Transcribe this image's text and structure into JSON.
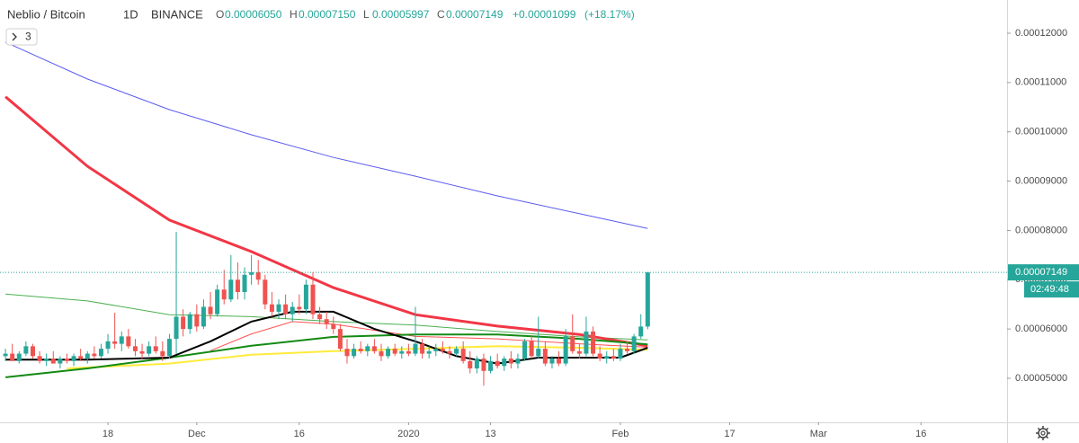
{
  "header": {
    "symbol": "Neblio / Bitcoin",
    "interval": "1D",
    "exchange": "BINANCE",
    "ohlc": [
      {
        "key": "O",
        "value": "0.00006050"
      },
      {
        "key": "H",
        "value": "0.00007150"
      },
      {
        "key": "L",
        "value": "0.00005997"
      },
      {
        "key": "C",
        "value": "0.00007149"
      }
    ],
    "change": "+0.00001099",
    "change_percent": "(+18.17%)",
    "indicators_button": "3"
  },
  "chart_data": {
    "type": "candlestick",
    "up_color": "#26a69a",
    "down_color": "#ef5350",
    "grid": false,
    "x": [
      0,
      1,
      2,
      3,
      4,
      5,
      6,
      7,
      8,
      9,
      10,
      11,
      12,
      13,
      14,
      15,
      16,
      17,
      18,
      19,
      20,
      21,
      22,
      23,
      24,
      25,
      26,
      27,
      28,
      29,
      30,
      31,
      32,
      33,
      34,
      35,
      36,
      37,
      38,
      39,
      40,
      41,
      42,
      43,
      44,
      45,
      46,
      47,
      48,
      49,
      50,
      51,
      52,
      53,
      54,
      55,
      56,
      57,
      58,
      59,
      60,
      61,
      62,
      63,
      64,
      65,
      66,
      67,
      68,
      69,
      70,
      71,
      72,
      73,
      74,
      75,
      76,
      77,
      78,
      79,
      80,
      81,
      82,
      83,
      84,
      85,
      86,
      87,
      88,
      89,
      90,
      91,
      92,
      93,
      94
    ],
    "open": [
      5.45e-05,
      5.5e-05,
      5.35e-05,
      5.5e-05,
      5.65e-05,
      5.45e-05,
      5.35e-05,
      5.4e-05,
      5.3e-05,
      5.4e-05,
      5.35e-05,
      5.45e-05,
      5.4e-05,
      5.5e-05,
      5.45e-05,
      5.6e-05,
      5.75e-05,
      5.7e-05,
      5.85e-05,
      5.65e-05,
      5.55e-05,
      5.5e-05,
      5.65e-05,
      5.55e-05,
      5.45e-05,
      5.8e-05,
      6.25e-05,
      6e-05,
      6.3e-05,
      6.05e-05,
      6.45e-05,
      6.3e-05,
      6.8e-05,
      6.6e-05,
      7e-05,
      6.75e-05,
      7.1e-05,
      7.15e-05,
      7e-05,
      6.5e-05,
      6.35e-05,
      6.5e-05,
      6.3e-05,
      6.45e-05,
      6.4e-05,
      6.9e-05,
      6.3e-05,
      6.2e-05,
      6.1e-05,
      6e-05,
      5.6e-05,
      5.45e-05,
      5.6e-05,
      5.55e-05,
      5.65e-05,
      5.55e-05,
      5.45e-05,
      5.6e-05,
      5.5e-05,
      5.55e-05,
      5.5e-05,
      5.7e-05,
      5.5e-05,
      5.55e-05,
      5.6e-05,
      5.55e-05,
      5.5e-05,
      5.6e-05,
      5.35e-05,
      5.2e-05,
      5.4e-05,
      5.15e-05,
      5.35e-05,
      5.25e-05,
      5.4e-05,
      5.3e-05,
      5.4e-05,
      5.75e-05,
      5.45e-05,
      5.6e-05,
      5.3e-05,
      5.4e-05,
      5.3e-05,
      5.85e-05,
      5.55e-05,
      5.5e-05,
      5.95e-05,
      5.5e-05,
      5.4e-05,
      5.45e-05,
      5.4e-05,
      5.6e-05,
      5.55e-05,
      5.85e-05,
      6.05e-05
    ],
    "high": [
      5.6e-05,
      5.7e-05,
      5.55e-05,
      5.75e-05,
      5.7e-05,
      5.55e-05,
      5.5e-05,
      5.55e-05,
      5.45e-05,
      5.5e-05,
      5.5e-05,
      5.6e-05,
      5.55e-05,
      5.65e-05,
      5.7e-05,
      5.9e-05,
      6.33e-05,
      5.95e-05,
      6e-05,
      5.8e-05,
      5.7e-05,
      5.75e-05,
      5.85e-05,
      5.75e-05,
      5.9e-05,
      7.97e-05,
      6.4e-05,
      6.35e-05,
      6.5e-05,
      6.6e-05,
      6.75e-05,
      6.9e-05,
      7.2e-05,
      7.5e-05,
      7.35e-05,
      7.25e-05,
      7.5e-05,
      7.4e-05,
      7.1e-05,
      6.75e-05,
      6.6e-05,
      6.7e-05,
      6.55e-05,
      6.7e-05,
      7e-05,
      7.15e-05,
      6.45e-05,
      6.35e-05,
      6.25e-05,
      6.1e-05,
      5.8e-05,
      5.7e-05,
      5.75e-05,
      5.7e-05,
      5.8e-05,
      5.7e-05,
      5.65e-05,
      5.7e-05,
      5.65e-05,
      5.7e-05,
      6.45e-05,
      5.8e-05,
      5.65e-05,
      5.7e-05,
      5.75e-05,
      5.65e-05,
      5.65e-05,
      5.75e-05,
      5.55e-05,
      5.45e-05,
      5.5e-05,
      5.45e-05,
      5.5e-05,
      5.45e-05,
      5.55e-05,
      5.5e-05,
      5.8e-05,
      5.85e-05,
      6.25e-05,
      5.75e-05,
      5.45e-05,
      5.55e-05,
      6e-05,
      6.3e-05,
      5.7e-05,
      6.25e-05,
      6.05e-05,
      5.65e-05,
      5.55e-05,
      5.6e-05,
      5.7e-05,
      5.75e-05,
      5.9e-05,
      6.3e-05,
      7.15e-05
    ],
    "low": [
      5.35e-05,
      5.4e-05,
      5.3e-05,
      5.45e-05,
      5.4e-05,
      5.3e-05,
      5.25e-05,
      5.3e-05,
      5.2e-05,
      5.3e-05,
      5.25e-05,
      5.35e-05,
      5.3e-05,
      5.4e-05,
      5.4e-05,
      5.5e-05,
      5.6e-05,
      5.55e-05,
      5.6e-05,
      5.45e-05,
      5.4e-05,
      5.45e-05,
      5.5e-05,
      5.35e-05,
      5.4e-05,
      5.5e-05,
      5.85e-05,
      5.9e-05,
      5.95e-05,
      6e-05,
      6.2e-05,
      6.25e-05,
      6.5e-05,
      6.55e-05,
      6.6e-05,
      6.6e-05,
      6.9e-05,
      6.9e-05,
      6.4e-05,
      6.25e-05,
      6.2e-05,
      6.2e-05,
      6.15e-05,
      6.3e-05,
      6.3e-05,
      6.2e-05,
      6.1e-05,
      6e-05,
      5.9e-05,
      5.55e-05,
      5.3e-05,
      5.4e-05,
      5.5e-05,
      5.45e-05,
      5.5e-05,
      5.35e-05,
      5.4e-05,
      5.45e-05,
      5.4e-05,
      5.45e-05,
      5.45e-05,
      5.4e-05,
      5.4e-05,
      5.45e-05,
      5.5e-05,
      5.4e-05,
      5.45e-05,
      5.3e-05,
      5.1e-05,
      5.1e-05,
      4.85e-05,
      5.1e-05,
      5.2e-05,
      5.15e-05,
      5.2e-05,
      5.2e-05,
      5.35e-05,
      5.4e-05,
      5.4e-05,
      5.25e-05,
      5.2e-05,
      5.25e-05,
      5.25e-05,
      5.5e-05,
      5.4e-05,
      5.45e-05,
      5.45e-05,
      5.35e-05,
      5.3e-05,
      5.35e-05,
      5.35e-05,
      5.5e-05,
      5.5e-05,
      5.8e-05,
      5.997e-05
    ],
    "close": [
      5.5e-05,
      5.35e-05,
      5.5e-05,
      5.65e-05,
      5.45e-05,
      5.35e-05,
      5.4e-05,
      5.3e-05,
      5.4e-05,
      5.35e-05,
      5.45e-05,
      5.4e-05,
      5.5e-05,
      5.45e-05,
      5.6e-05,
      5.75e-05,
      5.7e-05,
      5.85e-05,
      5.65e-05,
      5.55e-05,
      5.5e-05,
      5.65e-05,
      5.55e-05,
      5.45e-05,
      5.8e-05,
      6.25e-05,
      6e-05,
      6.3e-05,
      6.05e-05,
      6.45e-05,
      6.3e-05,
      6.8e-05,
      6.6e-05,
      7e-05,
      6.75e-05,
      7.1e-05,
      7.15e-05,
      7e-05,
      6.5e-05,
      6.35e-05,
      6.5e-05,
      6.3e-05,
      6.45e-05,
      6.4e-05,
      6.9e-05,
      6.3e-05,
      6.2e-05,
      6.1e-05,
      6e-05,
      5.6e-05,
      5.45e-05,
      5.6e-05,
      5.55e-05,
      5.65e-05,
      5.55e-05,
      5.45e-05,
      5.6e-05,
      5.5e-05,
      5.55e-05,
      5.5e-05,
      5.7e-05,
      5.5e-05,
      5.55e-05,
      5.6e-05,
      5.55e-05,
      5.5e-05,
      5.6e-05,
      5.35e-05,
      5.2e-05,
      5.4e-05,
      5.15e-05,
      5.35e-05,
      5.25e-05,
      5.4e-05,
      5.3e-05,
      5.4e-05,
      5.75e-05,
      5.45e-05,
      5.6e-05,
      5.3e-05,
      5.4e-05,
      5.3e-05,
      5.85e-05,
      5.55e-05,
      5.5e-05,
      5.95e-05,
      5.5e-05,
      5.4e-05,
      5.45e-05,
      5.4e-05,
      5.6e-05,
      5.55e-05,
      5.85e-05,
      6.05e-05,
      7.149e-05
    ],
    "last_price_label": "0.00007149",
    "countdown": "02:49:48",
    "lines": [
      {
        "color": "#5b5bf0",
        "width": 1,
        "x": [
          0,
          12,
          24,
          36,
          48,
          60,
          72,
          84,
          94
        ],
        "values": [
          0.0001182,
          0.0001107,
          0.0001045,
          9.94e-05,
          9.48e-05,
          9.1e-05,
          8.7e-05,
          8.34e-05,
          8.04e-05
        ]
      },
      {
        "color": "#4caf50",
        "width": 1,
        "x": [
          0,
          12,
          24,
          36,
          48,
          60,
          72,
          84,
          94
        ],
        "values": [
          6.71e-05,
          6.57e-05,
          6.29e-05,
          6.25e-05,
          6.15e-05,
          6.08e-05,
          5.95e-05,
          5.84e-05,
          5.78e-05
        ]
      },
      {
        "color": "#f23645",
        "width": 3,
        "x": [
          0,
          12,
          24,
          36,
          48,
          60,
          72,
          84,
          94
        ],
        "values": [
          0.0001071,
          9.3e-05,
          8.21e-05,
          7.57e-05,
          6.84e-05,
          6.29e-05,
          6.06e-05,
          5.89e-05,
          5.66e-05
        ]
      },
      {
        "color": "#ff5252",
        "width": 1,
        "x": [
          30,
          36,
          42,
          48,
          60,
          72,
          84,
          94
        ],
        "values": [
          5.56e-05,
          5.9e-05,
          6.15e-05,
          6.1e-05,
          5.85e-05,
          5.8e-05,
          5.7e-05,
          5.63e-05
        ]
      },
      {
        "color": "#ffeb3b",
        "width": 2,
        "x": [
          9,
          24,
          36,
          48,
          60,
          72,
          84,
          94
        ],
        "values": [
          5.2e-05,
          5.3e-05,
          5.48e-05,
          5.55e-05,
          5.6e-05,
          5.65e-05,
          5.62e-05,
          5.58e-05
        ]
      },
      {
        "color": "#138a13",
        "width": 2,
        "x": [
          0,
          12,
          24,
          36,
          48,
          60,
          72,
          84,
          94
        ],
        "values": [
          5.02e-05,
          5.2e-05,
          5.42e-05,
          5.66e-05,
          5.84e-05,
          5.89e-05,
          5.89e-05,
          5.8e-05,
          5.69e-05
        ]
      },
      {
        "color": "#000000",
        "width": 2,
        "x": [
          0,
          12,
          24,
          30,
          36,
          42,
          48,
          54,
          60,
          66,
          72,
          78,
          84,
          90,
          94
        ],
        "values": [
          5.38e-05,
          5.38e-05,
          5.42e-05,
          5.75e-05,
          6.15e-05,
          6.35e-05,
          6.35e-05,
          6e-05,
          5.75e-05,
          5.45e-05,
          5.3e-05,
          5.42e-05,
          5.42e-05,
          5.42e-05,
          5.62e-05
        ]
      }
    ],
    "xlim": [
      -0.8,
      146.6
    ],
    "xticks": [
      {
        "value": 15,
        "label": "18"
      },
      {
        "value": 28,
        "label": "Dec"
      },
      {
        "value": 43,
        "label": "16"
      },
      {
        "value": 59,
        "label": "2020"
      },
      {
        "value": 71,
        "label": "13"
      },
      {
        "value": 90,
        "label": "Feb"
      },
      {
        "value": 106,
        "label": "17"
      },
      {
        "value": 119,
        "label": "Mar"
      },
      {
        "value": 134,
        "label": "16"
      }
    ],
    "ylim": [
      4.107e-05,
      0.00012674
    ],
    "yticks": [
      {
        "value": 5e-05,
        "label": "0.00005000"
      },
      {
        "value": 6e-05,
        "label": "0.00006000"
      },
      {
        "value": 7e-05,
        "label": "0.00007000"
      },
      {
        "value": 8e-05,
        "label": "0.00008000"
      },
      {
        "value": 9e-05,
        "label": "0.00009000"
      },
      {
        "value": 0.0001,
        "label": "0.00010000"
      },
      {
        "value": 0.00011,
        "label": "0.00011000"
      },
      {
        "value": 0.00012,
        "label": "0.00012000"
      }
    ]
  }
}
